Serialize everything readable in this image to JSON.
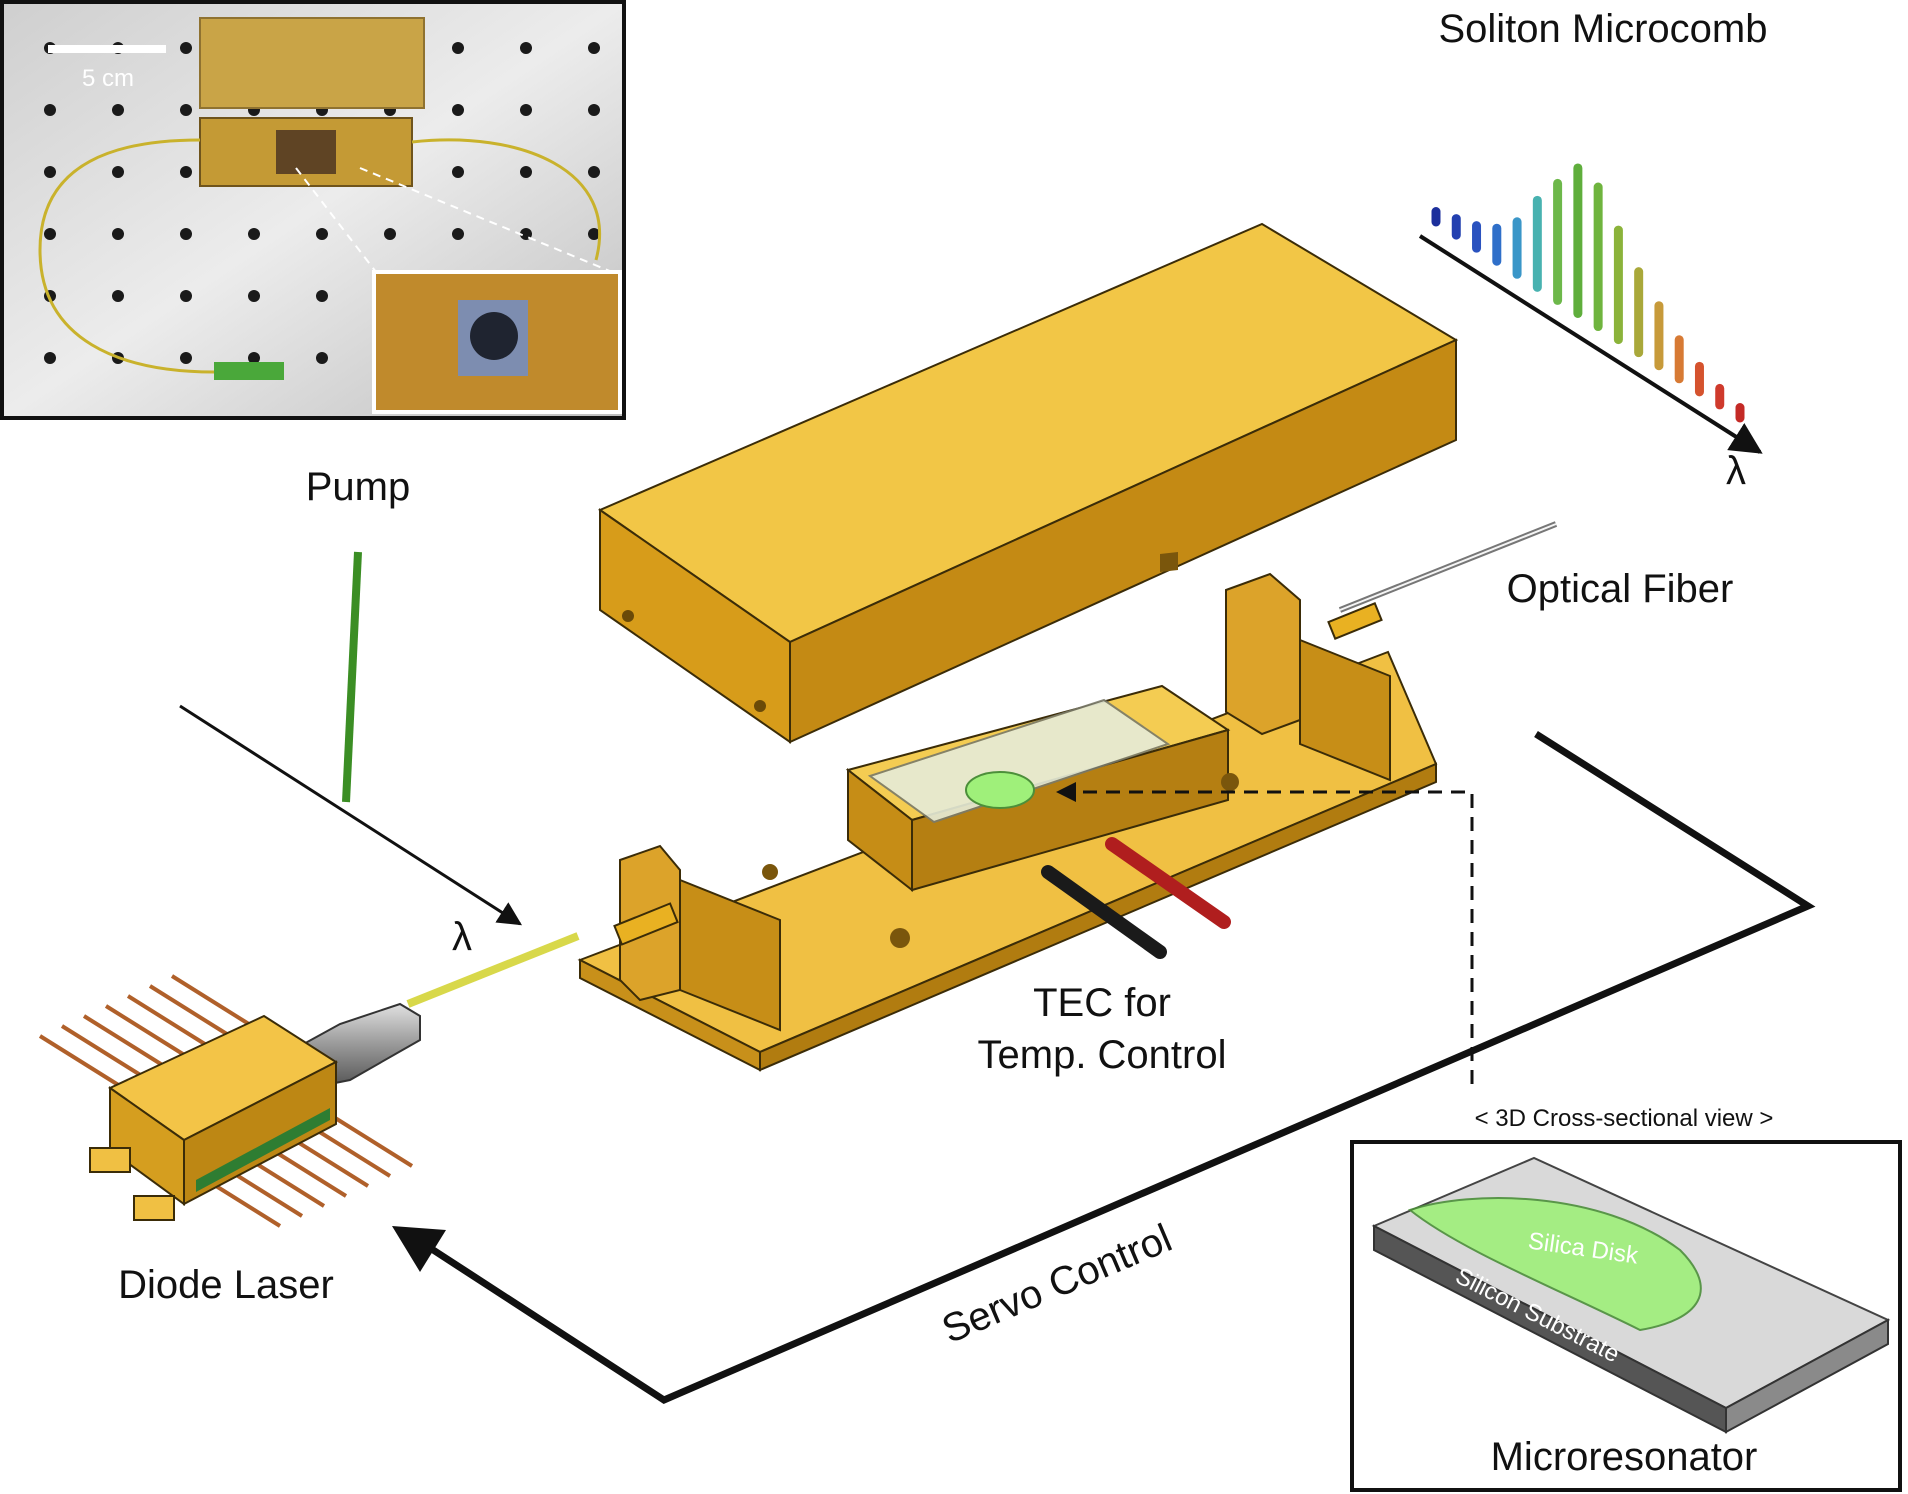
{
  "labels": {
    "soliton_microcomb": "Soliton Microcomb",
    "comb_axis": "λ",
    "pump": "Pump",
    "pump_axis": "λ",
    "optical_fiber": "Optical Fiber",
    "tec_line1": "TEC for",
    "tec_line2": "Temp. Control",
    "diode_laser": "Diode Laser",
    "servo_control": "Servo Control",
    "cross_section_caption": "< 3D Cross-sectional view >",
    "silica_disk": "Silica Disk",
    "silicon_substrate": "Silicon Substrate",
    "microresonator": "Microresonator",
    "scale_bar": "5 cm"
  },
  "comb_lines": [
    {
      "height": 0.07,
      "color": "#1c2f9c"
    },
    {
      "height": 0.11,
      "color": "#2340b0"
    },
    {
      "height": 0.15,
      "color": "#2a52bf"
    },
    {
      "height": 0.22,
      "color": "#2f6fc9"
    },
    {
      "height": 0.35,
      "color": "#3a96c8"
    },
    {
      "height": 0.58,
      "color": "#48b2b0"
    },
    {
      "height": 0.78,
      "color": "#6db84a"
    },
    {
      "height": 0.97,
      "color": "#5fae3c"
    },
    {
      "height": 0.93,
      "color": "#6fb43e"
    },
    {
      "height": 0.73,
      "color": "#8bb33a"
    },
    {
      "height": 0.54,
      "color": "#a9a83a"
    },
    {
      "height": 0.4,
      "color": "#c79a3a"
    },
    {
      "height": 0.26,
      "color": "#d77a34"
    },
    {
      "height": 0.17,
      "color": "#d5532e"
    },
    {
      "height": 0.11,
      "color": "#cf3a2c"
    },
    {
      "height": 0.07,
      "color": "#c42a26"
    }
  ],
  "colors": {
    "gold": "#e9b122",
    "gold_dark": "#b88612",
    "gold_light": "#f4cc52",
    "pump_green": "#55a532",
    "silica_green": "#9ff07a",
    "substrate_gray": "#8c8c8c"
  }
}
